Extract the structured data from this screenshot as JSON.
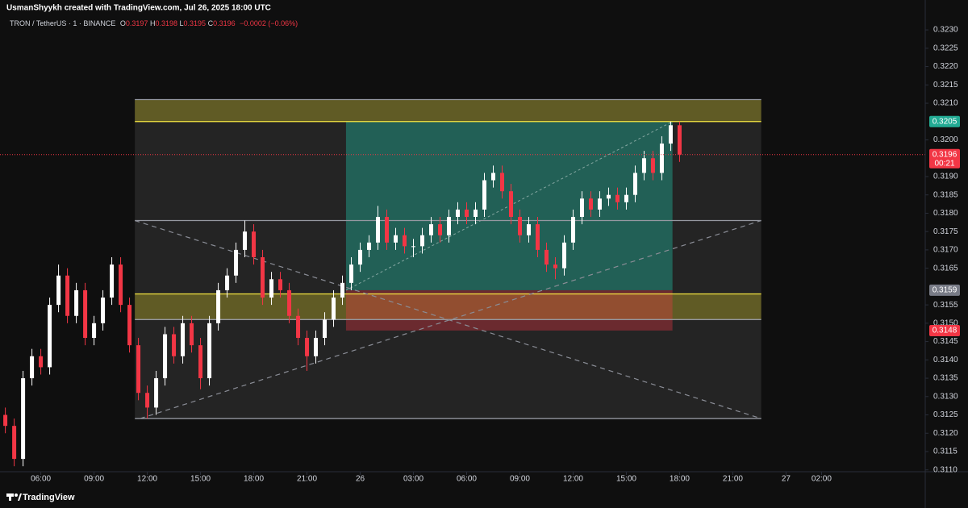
{
  "header": {
    "author_line": "UsmanShyykh created with TradingView.com, Jul 26, 2025 18:00 UTC",
    "symbol": "TRON / TetherUS · 1 · BINANCE",
    "ohlc": [
      {
        "key": "O",
        "value": "0.3197"
      },
      {
        "key": "H",
        "value": "0.3198"
      },
      {
        "key": "L",
        "value": "0.3195"
      },
      {
        "key": "C",
        "value": "0.3196"
      }
    ],
    "change": "−0.0002 (−0.06%)"
  },
  "chart_data": {
    "type": "candlestick",
    "x": [
      4,
      4.5,
      5,
      5.5,
      6,
      6.5,
      7,
      7.5,
      8,
      8.5,
      9,
      9.5,
      10,
      10.5,
      11,
      11.5,
      12,
      12.5,
      13,
      13.5,
      14,
      14.5,
      15,
      15.5,
      16,
      16.5,
      17,
      17.5,
      18,
      18.5,
      19,
      19.5,
      20,
      20.5,
      21,
      21.5,
      22,
      22.5,
      23,
      23.5,
      24,
      24.5,
      25,
      25.5,
      26,
      26.5,
      27,
      27.5,
      28,
      28.5,
      29,
      29.5,
      30,
      30.5,
      31,
      31.5,
      32,
      32.5,
      33,
      33.5,
      34,
      34.5,
      35,
      35.5,
      36,
      36.5,
      37,
      37.5,
      38,
      38.5,
      39,
      39.5,
      40,
      40.5,
      41,
      41.5,
      42
    ],
    "open": [
      0.3125,
      0.3122,
      0.3113,
      0.3135,
      0.3141,
      0.3138,
      0.3155,
      0.3163,
      0.3152,
      0.3159,
      0.3146,
      0.315,
      0.3157,
      0.3166,
      0.3155,
      0.3144,
      0.3131,
      0.3127,
      0.3135,
      0.3147,
      0.3141,
      0.315,
      0.3144,
      0.3135,
      0.315,
      0.3159,
      0.3163,
      0.317,
      0.3175,
      0.3168,
      0.3157,
      0.3162,
      0.3159,
      0.3152,
      0.3146,
      0.3141,
      0.3146,
      0.3151,
      0.3157,
      0.3161,
      0.3166,
      0.317,
      0.3172,
      0.3179,
      0.3172,
      0.3174,
      0.3171,
      0.3171,
      0.3174,
      0.3177,
      0.3174,
      0.3179,
      0.3181,
      0.3179,
      0.3181,
      0.3189,
      0.3191,
      0.3186,
      0.3179,
      0.3174,
      0.3177,
      0.317,
      0.3166,
      0.3165,
      0.3172,
      0.3179,
      0.3184,
      0.3181,
      0.3184,
      0.3185,
      0.3183,
      0.3185,
      0.3191,
      0.3195,
      0.3191,
      0.3199,
      0.3204
    ],
    "high": [
      0.3127,
      0.3124,
      0.3137,
      0.3143,
      0.3143,
      0.3157,
      0.3166,
      0.3165,
      0.3161,
      0.3161,
      0.3152,
      0.3159,
      0.3168,
      0.3168,
      0.3157,
      0.3146,
      0.3133,
      0.3137,
      0.3149,
      0.3149,
      0.3152,
      0.3152,
      0.3146,
      0.3152,
      0.3161,
      0.3165,
      0.3172,
      0.3178,
      0.3177,
      0.317,
      0.3164,
      0.3164,
      0.3161,
      0.3154,
      0.3148,
      0.3148,
      0.3153,
      0.3159,
      0.3163,
      0.3168,
      0.3172,
      0.3174,
      0.3182,
      0.3181,
      0.3176,
      0.3176,
      0.3173,
      0.3176,
      0.3179,
      0.3179,
      0.3181,
      0.3183,
      0.3183,
      0.3183,
      0.3191,
      0.3193,
      0.3193,
      0.3188,
      0.3181,
      0.3179,
      0.3179,
      0.3172,
      0.3168,
      0.3174,
      0.3181,
      0.3186,
      0.3186,
      0.3186,
      0.3187,
      0.3187,
      0.3187,
      0.3193,
      0.3197,
      0.3197,
      0.3201,
      0.3205,
      0.3205
    ],
    "low": [
      0.312,
      0.3111,
      0.3111,
      0.3133,
      0.3136,
      0.3136,
      0.3153,
      0.315,
      0.315,
      0.3144,
      0.3144,
      0.3148,
      0.3155,
      0.3153,
      0.3142,
      0.3129,
      0.3124,
      0.3125,
      0.3133,
      0.3139,
      0.3139,
      0.3142,
      0.3132,
      0.3133,
      0.3148,
      0.3157,
      0.3161,
      0.3168,
      0.3166,
      0.3155,
      0.3155,
      0.3157,
      0.315,
      0.3144,
      0.3137,
      0.3139,
      0.3144,
      0.3149,
      0.3155,
      0.3159,
      0.3164,
      0.3168,
      0.317,
      0.317,
      0.317,
      0.3169,
      0.3168,
      0.3169,
      0.3172,
      0.3172,
      0.3172,
      0.3177,
      0.3177,
      0.3177,
      0.3179,
      0.3187,
      0.3184,
      0.3177,
      0.3172,
      0.3172,
      0.3168,
      0.3164,
      0.3162,
      0.3163,
      0.317,
      0.3177,
      0.3179,
      0.3179,
      0.3182,
      0.3181,
      0.3181,
      0.3183,
      0.3189,
      0.3189,
      0.3189,
      0.3197,
      0.3194
    ],
    "close": [
      0.3122,
      0.3113,
      0.3135,
      0.3141,
      0.3138,
      0.3155,
      0.3163,
      0.3152,
      0.3159,
      0.3146,
      0.315,
      0.3157,
      0.3166,
      0.3155,
      0.3144,
      0.3131,
      0.3127,
      0.3135,
      0.3147,
      0.3141,
      0.315,
      0.3144,
      0.3135,
      0.315,
      0.3159,
      0.3163,
      0.317,
      0.3175,
      0.3168,
      0.3157,
      0.3162,
      0.3159,
      0.3152,
      0.3146,
      0.3141,
      0.3146,
      0.3151,
      0.3157,
      0.3161,
      0.3166,
      0.317,
      0.3172,
      0.3179,
      0.3172,
      0.3174,
      0.3171,
      0.3171,
      0.3174,
      0.3177,
      0.3174,
      0.3179,
      0.3181,
      0.3179,
      0.3181,
      0.3189,
      0.3191,
      0.3186,
      0.3179,
      0.3174,
      0.3177,
      0.317,
      0.3166,
      0.3165,
      0.3172,
      0.3179,
      0.3184,
      0.3181,
      0.3184,
      0.3185,
      0.3183,
      0.3185,
      0.3191,
      0.3195,
      0.3191,
      0.3199,
      0.3204,
      0.3196
    ],
    "up_color": "#ffffff",
    "down_color": "#f23645",
    "xlim": [
      3.7,
      55.8
    ],
    "ylim": [
      0.31095,
      0.3232
    ],
    "grid": false,
    "xticks": [
      {
        "value": 6,
        "label": "06:00"
      },
      {
        "value": 9,
        "label": "09:00"
      },
      {
        "value": 12,
        "label": "12:00"
      },
      {
        "value": 15,
        "label": "15:00"
      },
      {
        "value": 18,
        "label": "18:00"
      },
      {
        "value": 21,
        "label": "21:00"
      },
      {
        "value": 24,
        "label": "26"
      },
      {
        "value": 27,
        "label": "03:00"
      },
      {
        "value": 30,
        "label": "06:00"
      },
      {
        "value": 33,
        "label": "09:00"
      },
      {
        "value": 36,
        "label": "12:00"
      },
      {
        "value": 39,
        "label": "15:00"
      },
      {
        "value": 42,
        "label": "18:00"
      },
      {
        "value": 45,
        "label": "21:00"
      },
      {
        "value": 48,
        "label": "27"
      },
      {
        "value": 50,
        "label": "02:00"
      }
    ],
    "yticks": [
      {
        "value": 0.311,
        "label": "0.3110"
      },
      {
        "value": 0.3115,
        "label": "0.3115"
      },
      {
        "value": 0.312,
        "label": "0.3120"
      },
      {
        "value": 0.3125,
        "label": "0.3125"
      },
      {
        "value": 0.313,
        "label": "0.3130"
      },
      {
        "value": 0.3135,
        "label": "0.3135"
      },
      {
        "value": 0.314,
        "label": "0.3140"
      },
      {
        "value": 0.3145,
        "label": "0.3145"
      },
      {
        "value": 0.315,
        "label": "0.3150"
      },
      {
        "value": 0.3155,
        "label": "0.3155"
      },
      {
        "value": 0.3165,
        "label": "0.3165"
      },
      {
        "value": 0.317,
        "label": "0.3170"
      },
      {
        "value": 0.3175,
        "label": "0.3175"
      },
      {
        "value": 0.318,
        "label": "0.3180"
      },
      {
        "value": 0.3185,
        "label": "0.3185"
      },
      {
        "value": 0.319,
        "label": "0.3190"
      },
      {
        "value": 0.32,
        "label": "0.3200"
      },
      {
        "value": 0.321,
        "label": "0.3210"
      },
      {
        "value": 0.3215,
        "label": "0.3215"
      },
      {
        "value": 0.322,
        "label": "0.3220"
      },
      {
        "value": 0.3225,
        "label": "0.3225"
      },
      {
        "value": 0.323,
        "label": "0.3230"
      }
    ],
    "last_price": {
      "value": 0.3196,
      "label": "0.3196",
      "countdown": "00:21",
      "color": "#f23645"
    },
    "price_labels": [
      {
        "value": 0.3205,
        "label": "0.3205",
        "color": "#22ab94"
      },
      {
        "value": 0.3159,
        "label": "0.3159",
        "color": "#787b86"
      },
      {
        "value": 0.3148,
        "label": "0.3148",
        "color": "#f23645"
      }
    ],
    "drawings": {
      "zones": [
        {
          "x": [
            11.3,
            46.6
          ],
          "y": [
            0.3124,
            0.3211
          ],
          "color": "rgba(255,255,255,0.09)"
        },
        {
          "x": [
            11.3,
            46.6
          ],
          "y": [
            0.3205,
            0.3211
          ],
          "color": "rgba(170,160,40,0.45)"
        },
        {
          "x": [
            11.3,
            46.6
          ],
          "y": [
            0.3151,
            0.3158
          ],
          "color": "rgba(170,160,40,0.45)"
        }
      ],
      "levels": [
        {
          "x": [
            11.3,
            46.6
          ],
          "price": 0.3211,
          "color": "#9598a1"
        },
        {
          "x": [
            11.3,
            46.6
          ],
          "price": 0.3205,
          "color": "#f5e642"
        },
        {
          "x": [
            11.3,
            46.6
          ],
          "price": 0.3178,
          "color": "#9598a1"
        },
        {
          "x": [
            11.3,
            46.6
          ],
          "price": 0.3158,
          "color": "#f5e642"
        },
        {
          "x": [
            11.3,
            46.6
          ],
          "price": 0.3151,
          "color": "#9598a1"
        },
        {
          "x": [
            11.3,
            46.6
          ],
          "price": 0.3124,
          "color": "#9598a1"
        }
      ],
      "diagonals": [
        {
          "x": [
            11.3,
            46.6
          ],
          "y": [
            0.3178,
            0.3124
          ]
        },
        {
          "x": [
            11.6,
            46.6
          ],
          "y": [
            0.3124,
            0.3178
          ]
        }
      ],
      "position": {
        "x": [
          23.2,
          41.6
        ],
        "entry": 0.3159,
        "target": 0.3205,
        "stop": 0.3148,
        "profit_color": "rgba(34,171,148,0.45)",
        "loss_color": "rgba(242,54,69,0.35)"
      }
    }
  },
  "footer": {
    "brand": "TradingView"
  }
}
